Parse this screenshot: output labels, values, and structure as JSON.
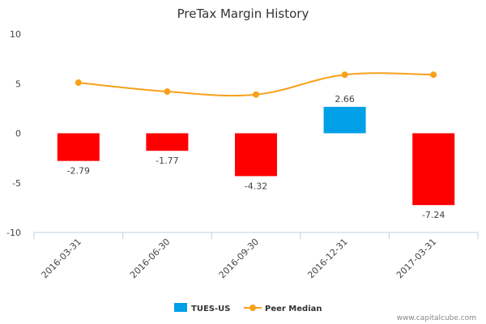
{
  "watermark": "www.capitalcube.com",
  "colors": {
    "bar_positive": "#00a0e8",
    "bar_negative": "#ff0000",
    "median_line": "#f7a11a",
    "axis": "#c0d0e0",
    "text": "#444444"
  },
  "chart_data": {
    "type": "bar",
    "title": "PreTax Margin History",
    "categories": [
      "2016-03-31",
      "2016-06-30",
      "2016-09-30",
      "2016-12-31",
      "2017-03-31"
    ],
    "ylim": [
      -10,
      10
    ],
    "yticks": [
      10,
      5,
      0,
      -5,
      -10
    ],
    "grid": false,
    "legend": "bottom-center",
    "series": [
      {
        "name": "TUES-US",
        "type": "bar",
        "values": [
          -2.79,
          -1.77,
          -4.32,
          2.66,
          -7.24
        ],
        "labels": [
          "-2.79",
          "-1.77",
          "-4.32",
          "2.66",
          "-7.24"
        ]
      },
      {
        "name": "Peer Median",
        "type": "line",
        "values": [
          5.1,
          4.2,
          3.9,
          5.9,
          5.9
        ]
      }
    ]
  }
}
